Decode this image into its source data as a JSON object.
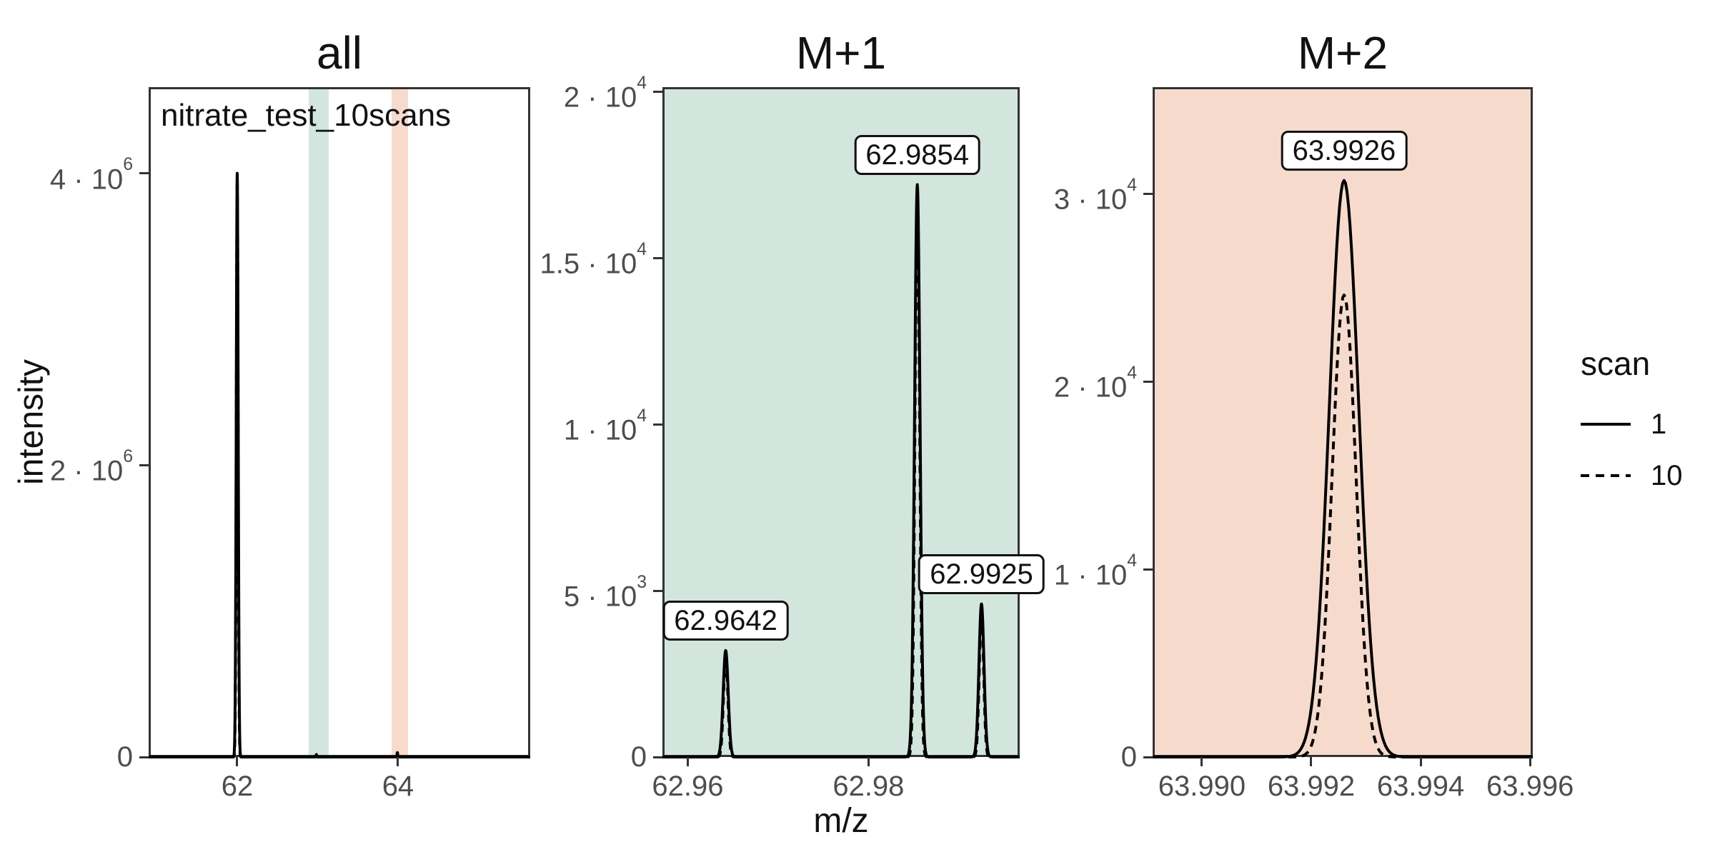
{
  "figure": {
    "y_axis_title": "intensity",
    "x_axis_title": "m/z",
    "annotation": "nitrate_test_10scans",
    "legend": {
      "title": "scan",
      "entries": [
        {
          "label": "1",
          "style": "solid"
        },
        {
          "label": "10",
          "style": "dashed"
        }
      ]
    },
    "colors": {
      "m1_highlight": "#d3e6dd",
      "m2_highlight": "#f6dbcd",
      "line": "#000000",
      "axis": "#333333",
      "tick_label": "#4d4d4d"
    }
  },
  "chart_data": [
    {
      "type": "line",
      "panel": "all",
      "title": "all",
      "background": "#ffffff",
      "xlim": [
        60.898,
        65.645
      ],
      "ylim": [
        0,
        4590000
      ],
      "x_ticks": [
        {
          "v": 62,
          "label": "62"
        },
        {
          "v": 64,
          "label": "64"
        }
      ],
      "y_ticks": [
        {
          "v": 0,
          "label": "0"
        },
        {
          "v": 2000000,
          "label": "2 · 10^6"
        },
        {
          "v": 4000000,
          "label": "4 · 10^6"
        }
      ],
      "bands": [
        {
          "x0": 62.86,
          "x1": 63.11,
          "color": "#d3e6dd",
          "name": "M+1 region"
        },
        {
          "x0": 63.89,
          "x1": 64.1,
          "color": "#f6dbcd",
          "name": "M+2 region"
        }
      ],
      "peak_labels": [],
      "series": [
        {
          "scan": "1",
          "style": "solid",
          "peaks": [
            {
              "mz": 62.0,
              "intensity": 4000000,
              "sigma": 0.012
            },
            {
              "mz": 62.9854,
              "intensity": 17200,
              "sigma": 0.004
            },
            {
              "mz": 63.9926,
              "intensity": 30700,
              "sigma": 0.004
            }
          ]
        },
        {
          "scan": "10",
          "style": "dashed",
          "peaks": [
            {
              "mz": 62.0,
              "intensity": 3960000,
              "sigma": 0.011
            },
            {
              "mz": 62.9854,
              "intensity": 16600,
              "sigma": 0.0035
            },
            {
              "mz": 63.9926,
              "intensity": 24600,
              "sigma": 0.0035
            }
          ]
        }
      ]
    },
    {
      "type": "line",
      "panel": "m1",
      "title": "M+1",
      "background": "#d3e6dd",
      "xlim": [
        62.9572,
        62.99673
      ],
      "ylim": [
        0,
        20130
      ],
      "x_ticks": [
        {
          "v": 62.96,
          "label": "62.96"
        },
        {
          "v": 62.98,
          "label": "62.98"
        }
      ],
      "y_ticks": [
        {
          "v": 0,
          "label": "0"
        },
        {
          "v": 5000,
          "label": "5 · 10^3"
        },
        {
          "v": 10000,
          "label": "1 · 10^4"
        },
        {
          "v": 15000,
          "label": "1.5 · 10^4"
        },
        {
          "v": 20000,
          "label": "2 · 10^4"
        }
      ],
      "bands": [],
      "peak_labels": [
        {
          "text": "62.9642",
          "mz": 62.9642,
          "apex": 3200
        },
        {
          "text": "62.9854",
          "mz": 62.9854,
          "apex": 17200
        },
        {
          "text": "62.9925",
          "mz": 62.9925,
          "apex": 4600
        }
      ],
      "series": [
        {
          "scan": "1",
          "style": "solid",
          "peaks": [
            {
              "mz": 62.9642,
              "intensity": 3200,
              "sigma": 0.00028
            },
            {
              "mz": 62.9854,
              "intensity": 17200,
              "sigma": 0.0003
            },
            {
              "mz": 62.9925,
              "intensity": 4600,
              "sigma": 0.00028
            }
          ]
        },
        {
          "scan": "10",
          "style": "dashed",
          "peaks": [
            {
              "mz": 62.9642,
              "intensity": 3050,
              "sigma": 0.00024
            },
            {
              "mz": 62.9854,
              "intensity": 16600,
              "sigma": 0.00026
            },
            {
              "mz": 62.9925,
              "intensity": 4400,
              "sigma": 0.00024
            }
          ]
        }
      ]
    },
    {
      "type": "line",
      "panel": "m2",
      "title": "M+2",
      "background": "#f6dbcd",
      "xlim": [
        63.9891,
        63.99605
      ],
      "ylim": [
        0,
        35670
      ],
      "x_ticks": [
        {
          "v": 63.99,
          "label": "63.990"
        },
        {
          "v": 63.992,
          "label": "63.992"
        },
        {
          "v": 63.994,
          "label": "63.994"
        },
        {
          "v": 63.996,
          "label": "63.996"
        }
      ],
      "y_ticks": [
        {
          "v": 0,
          "label": "0"
        },
        {
          "v": 10000,
          "label": "1 · 10^4"
        },
        {
          "v": 20000,
          "label": "2 · 10^4"
        },
        {
          "v": 30000,
          "label": "3 · 10^4"
        }
      ],
      "bands": [],
      "peak_labels": [
        {
          "text": "63.9926",
          "mz": 63.9926,
          "apex": 30700
        }
      ],
      "series": [
        {
          "scan": "1",
          "style": "solid",
          "peaks": [
            {
              "mz": 63.9926,
              "intensity": 30700,
              "sigma": 0.00027
            }
          ]
        },
        {
          "scan": "10",
          "style": "dashed",
          "peaks": [
            {
              "mz": 63.9926,
              "intensity": 24600,
              "sigma": 0.00022
            }
          ]
        }
      ]
    }
  ]
}
